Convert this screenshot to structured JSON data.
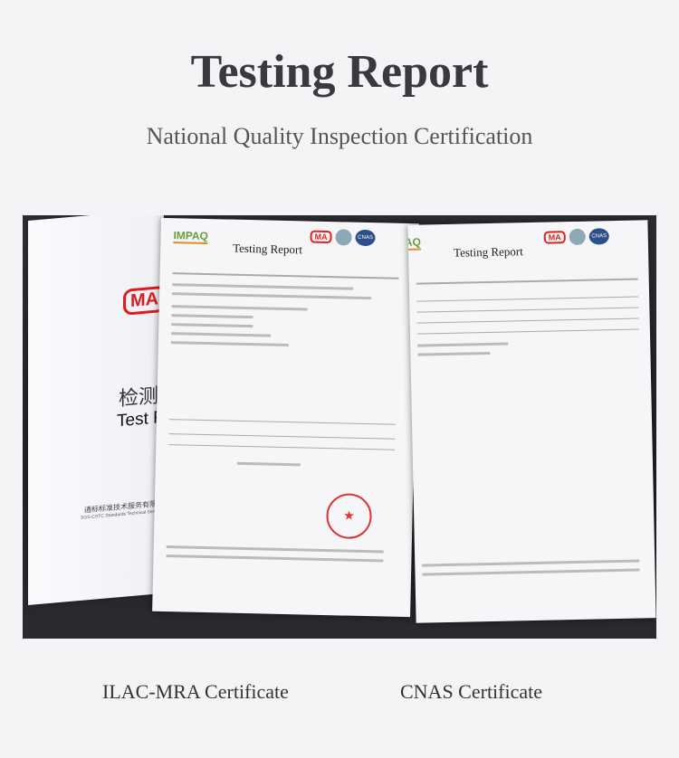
{
  "header": {
    "title": "Testing Report",
    "subtitle": "National Quality Inspection Certification"
  },
  "cover": {
    "ma_logo": "MA",
    "title_cn": "检测报",
    "title_en": "Test Re",
    "org_cn": "通标标准技术服务有限",
    "org_en": "SGS-CSTC Standards Technical Servi"
  },
  "report1": {
    "brand": "IMPAQ",
    "title": "Testing Report",
    "ma_badge": "MA",
    "cnas_badge": "CNAS"
  },
  "report2": {
    "brand": "AQ",
    "title": "Testing Report",
    "ma_badge": "MA",
    "cnas_badge": "CNAS"
  },
  "captions": {
    "left": "ILAC-MRA Certificate",
    "right": "CNAS Certificate"
  }
}
